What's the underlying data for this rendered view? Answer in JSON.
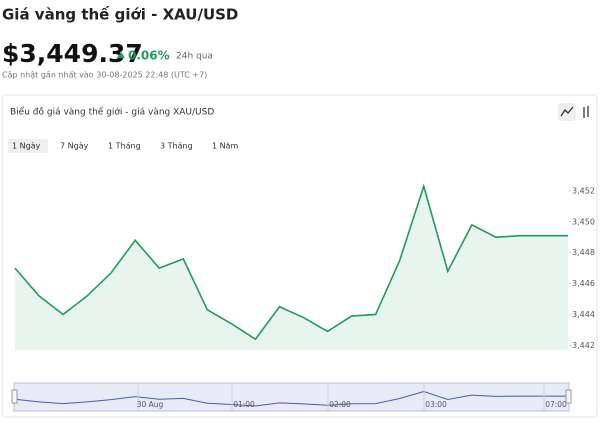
{
  "header": {
    "title": "Giá vàng thế giới - XAU/USD",
    "price": "$3,449.37",
    "change": "0.06%",
    "change_period": "24h qua",
    "updated": "Cập nhật gần nhất vào 30-08-2025 22:48 (UTC +7)"
  },
  "card_title": "Biểu đồ giá vàng thế giới - giá vàng XAU/USD",
  "tabs": [
    "1 Ngày",
    "7 Ngày",
    "1 Tháng",
    "3 Tháng",
    "1 Năm"
  ],
  "navigator": {
    "labels": [
      "30 Aug",
      "01:00",
      "02:00",
      "03:00",
      "07:00"
    ]
  },
  "chart_data": {
    "type": "area",
    "color": "#1f9d55",
    "categories": [
      null,
      null,
      null,
      null,
      null,
      null,
      null,
      null,
      null,
      null,
      null,
      null,
      null,
      null,
      null,
      null,
      null,
      null,
      null,
      null,
      null,
      null,
      null,
      null
    ],
    "values": [
      3447.0,
      3445.2,
      3444.0,
      3445.2,
      3446.7,
      3448.8,
      3447.0,
      3447.6,
      3444.3,
      3443.4,
      3442.4,
      3444.5,
      3443.8,
      3442.9,
      3443.9,
      3444.0,
      3447.5,
      3452.3,
      3446.8,
      3449.8,
      3449.0,
      3449.1,
      3449.1,
      3449.1
    ],
    "ylim": [
      3441.7,
      3454
    ],
    "yticks": [
      {
        "value": 3442,
        "label": "3,442"
      },
      {
        "value": 3444,
        "label": "3,444"
      },
      {
        "value": 3446,
        "label": "3,446"
      },
      {
        "value": 3448,
        "label": "3,448"
      },
      {
        "value": 3450,
        "label": "3,450"
      },
      {
        "value": 3452,
        "label": "3,452"
      }
    ]
  }
}
